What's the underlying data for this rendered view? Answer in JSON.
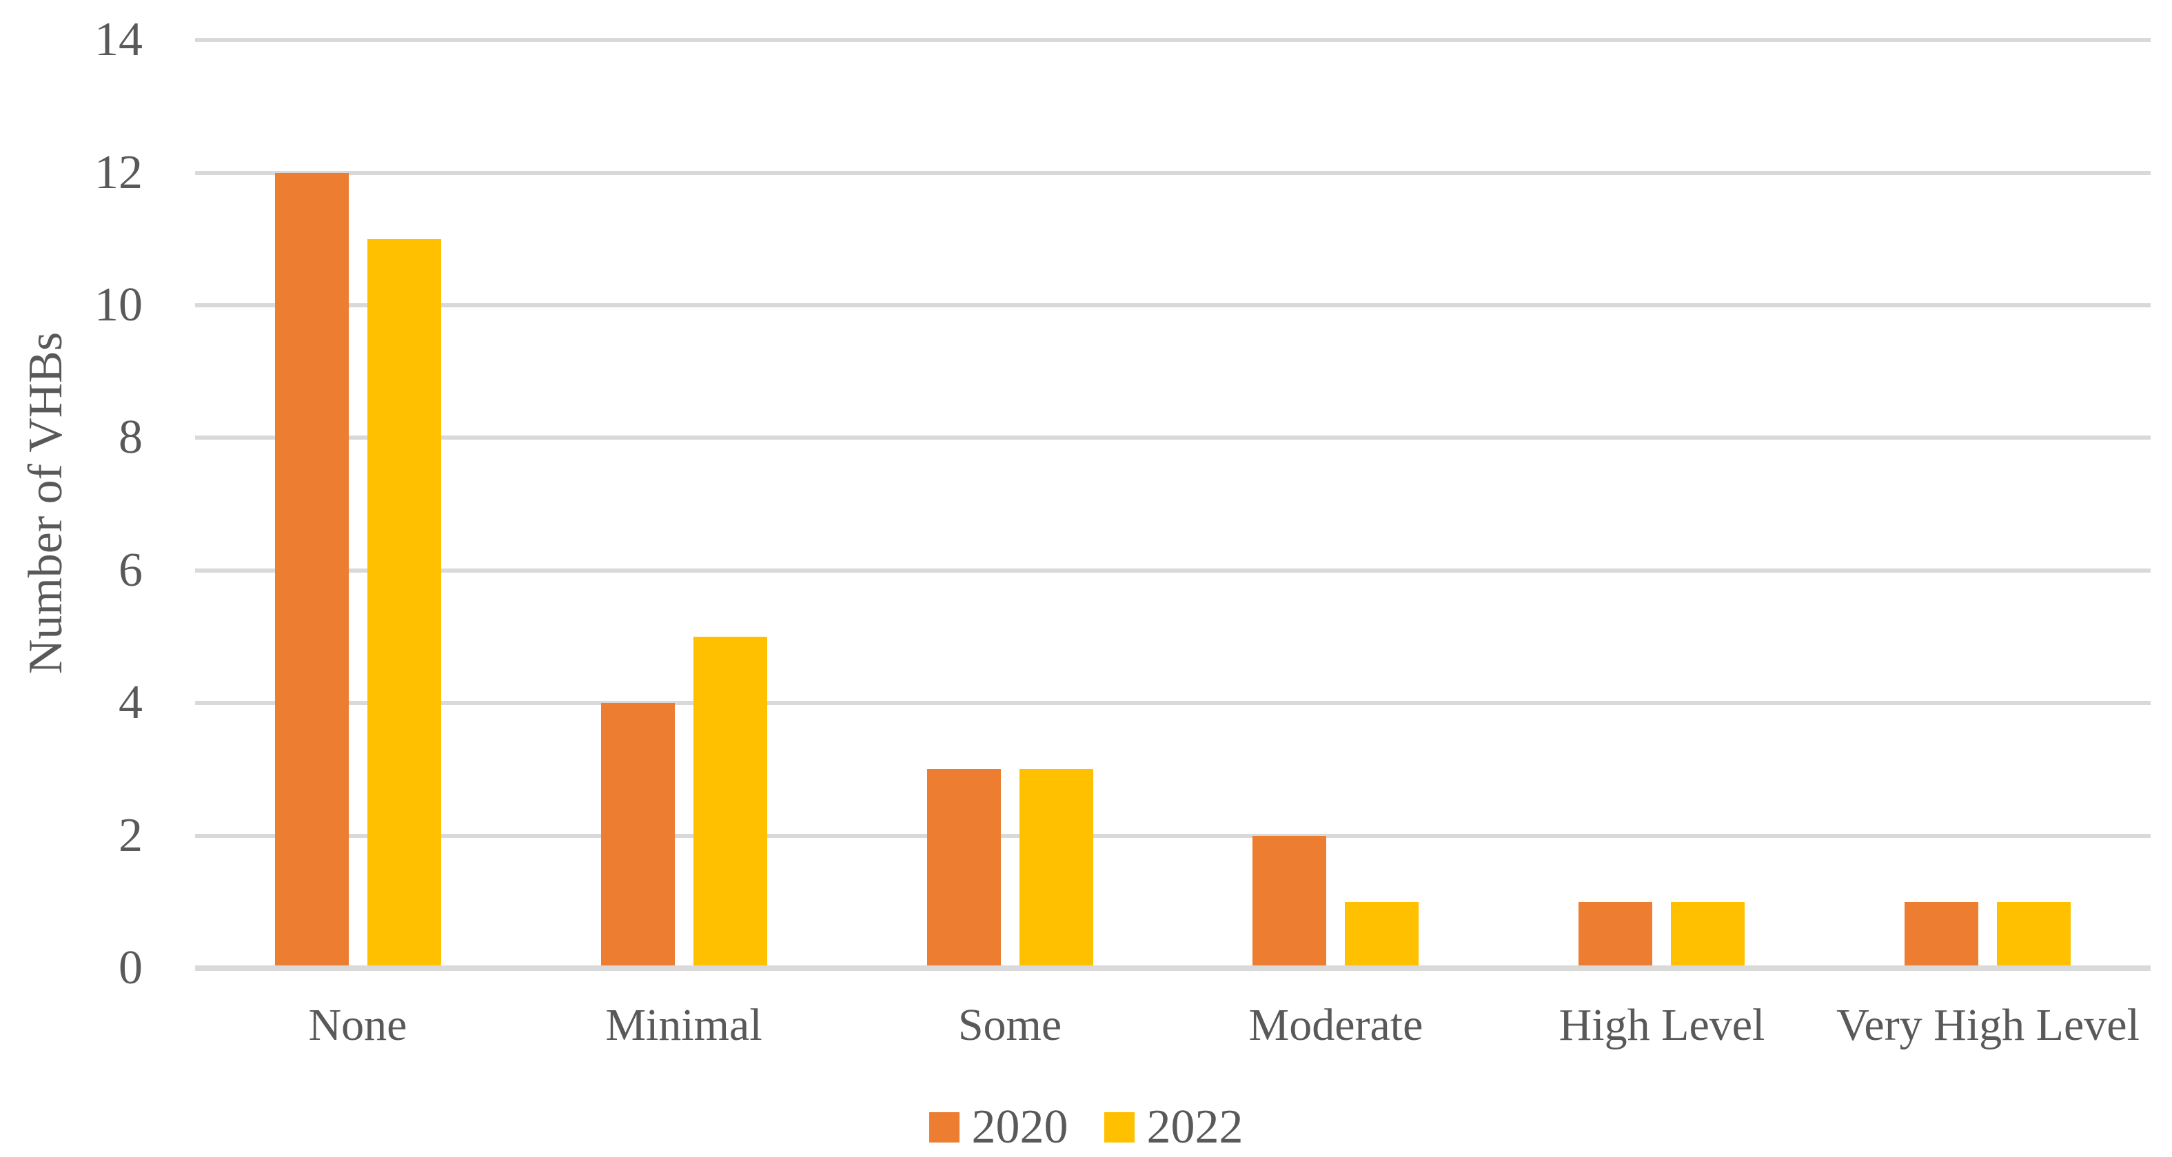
{
  "chart_data": {
    "type": "bar",
    "title": "",
    "xlabel": "",
    "ylabel": "Number of VHBs",
    "categories": [
      "None",
      "Minimal",
      "Some",
      "Moderate",
      "High Level",
      "Very High Level"
    ],
    "series": [
      {
        "name": "2020",
        "color": "#ED7D31",
        "values": [
          12,
          4,
          3,
          2,
          1,
          1
        ]
      },
      {
        "name": "2022",
        "color": "#FFC000",
        "values": [
          11,
          5,
          3,
          1,
          1,
          1
        ]
      }
    ],
    "ylim": [
      0,
      14
    ],
    "yticks": [
      0,
      2,
      4,
      6,
      8,
      10,
      12,
      14
    ],
    "grid": true,
    "legend_position": "bottom",
    "colors": {
      "grid": "#D9D9D9",
      "axis_line": "#D9D9D9",
      "text": "#595959",
      "background": "#FFFFFF"
    }
  }
}
